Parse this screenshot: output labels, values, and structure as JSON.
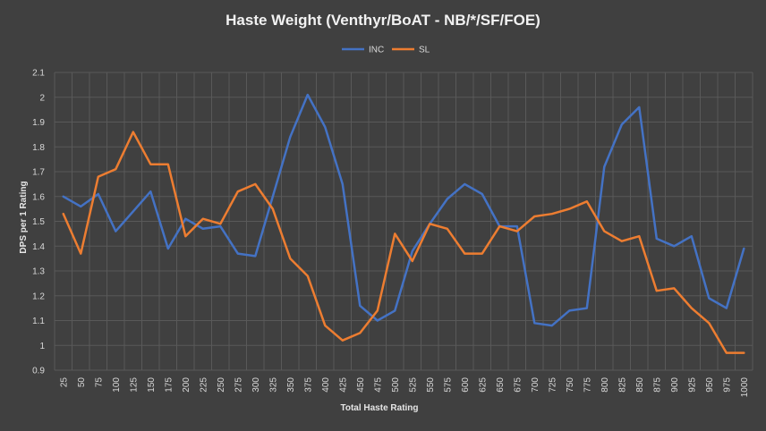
{
  "chart_data": {
    "type": "line",
    "title": "Haste Weight (Venthyr/BoAT - NB/*/SF/FOE)",
    "xlabel": "Total Haste Rating",
    "ylabel": "DPS per 1 Rating",
    "ylim": [
      0.9,
      2.1
    ],
    "yticks": [
      "2.1",
      "2",
      "1.9",
      "1.8",
      "1.7",
      "1.6",
      "1.5",
      "1.4",
      "1.3",
      "1.2",
      "1.1",
      "1",
      "0.9"
    ],
    "ytick_values": [
      2.1,
      2.0,
      1.9,
      1.8,
      1.7,
      1.6,
      1.5,
      1.4,
      1.3,
      1.2,
      1.1,
      1.0,
      0.9
    ],
    "grid": true,
    "legend_position": "top-center",
    "categories": [
      "25",
      "50",
      "75",
      "100",
      "125",
      "150",
      "175",
      "200",
      "225",
      "250",
      "275",
      "300",
      "325",
      "350",
      "375",
      "400",
      "425",
      "450",
      "475",
      "500",
      "525",
      "550",
      "575",
      "600",
      "625",
      "650",
      "675",
      "700",
      "725",
      "750",
      "775",
      "800",
      "825",
      "850",
      "875",
      "900",
      "925",
      "950",
      "975",
      "1000"
    ],
    "series": [
      {
        "name": "INC",
        "color": "#4472c4",
        "values": [
          1.6,
          1.56,
          1.61,
          1.46,
          1.54,
          1.62,
          1.39,
          1.51,
          1.47,
          1.48,
          1.37,
          1.36,
          1.6,
          1.84,
          2.01,
          1.88,
          1.65,
          1.16,
          1.1,
          1.14,
          1.38,
          1.49,
          1.59,
          1.65,
          1.61,
          1.48,
          1.48,
          1.09,
          1.08,
          1.14,
          1.15,
          1.72,
          1.89,
          1.96,
          1.43,
          1.4,
          1.44,
          1.19,
          1.15,
          1.39
        ]
      },
      {
        "name": "SL",
        "color": "#ed7d31",
        "values": [
          1.53,
          1.37,
          1.68,
          1.71,
          1.86,
          1.73,
          1.73,
          1.44,
          1.51,
          1.49,
          1.62,
          1.65,
          1.55,
          1.35,
          1.28,
          1.08,
          1.02,
          1.05,
          1.14,
          1.45,
          1.34,
          1.49,
          1.47,
          1.37,
          1.37,
          1.48,
          1.46,
          1.52,
          1.53,
          1.55,
          1.58,
          1.46,
          1.42,
          1.44,
          1.22,
          1.23,
          1.15,
          1.09,
          0.97,
          0.97
        ]
      }
    ]
  }
}
